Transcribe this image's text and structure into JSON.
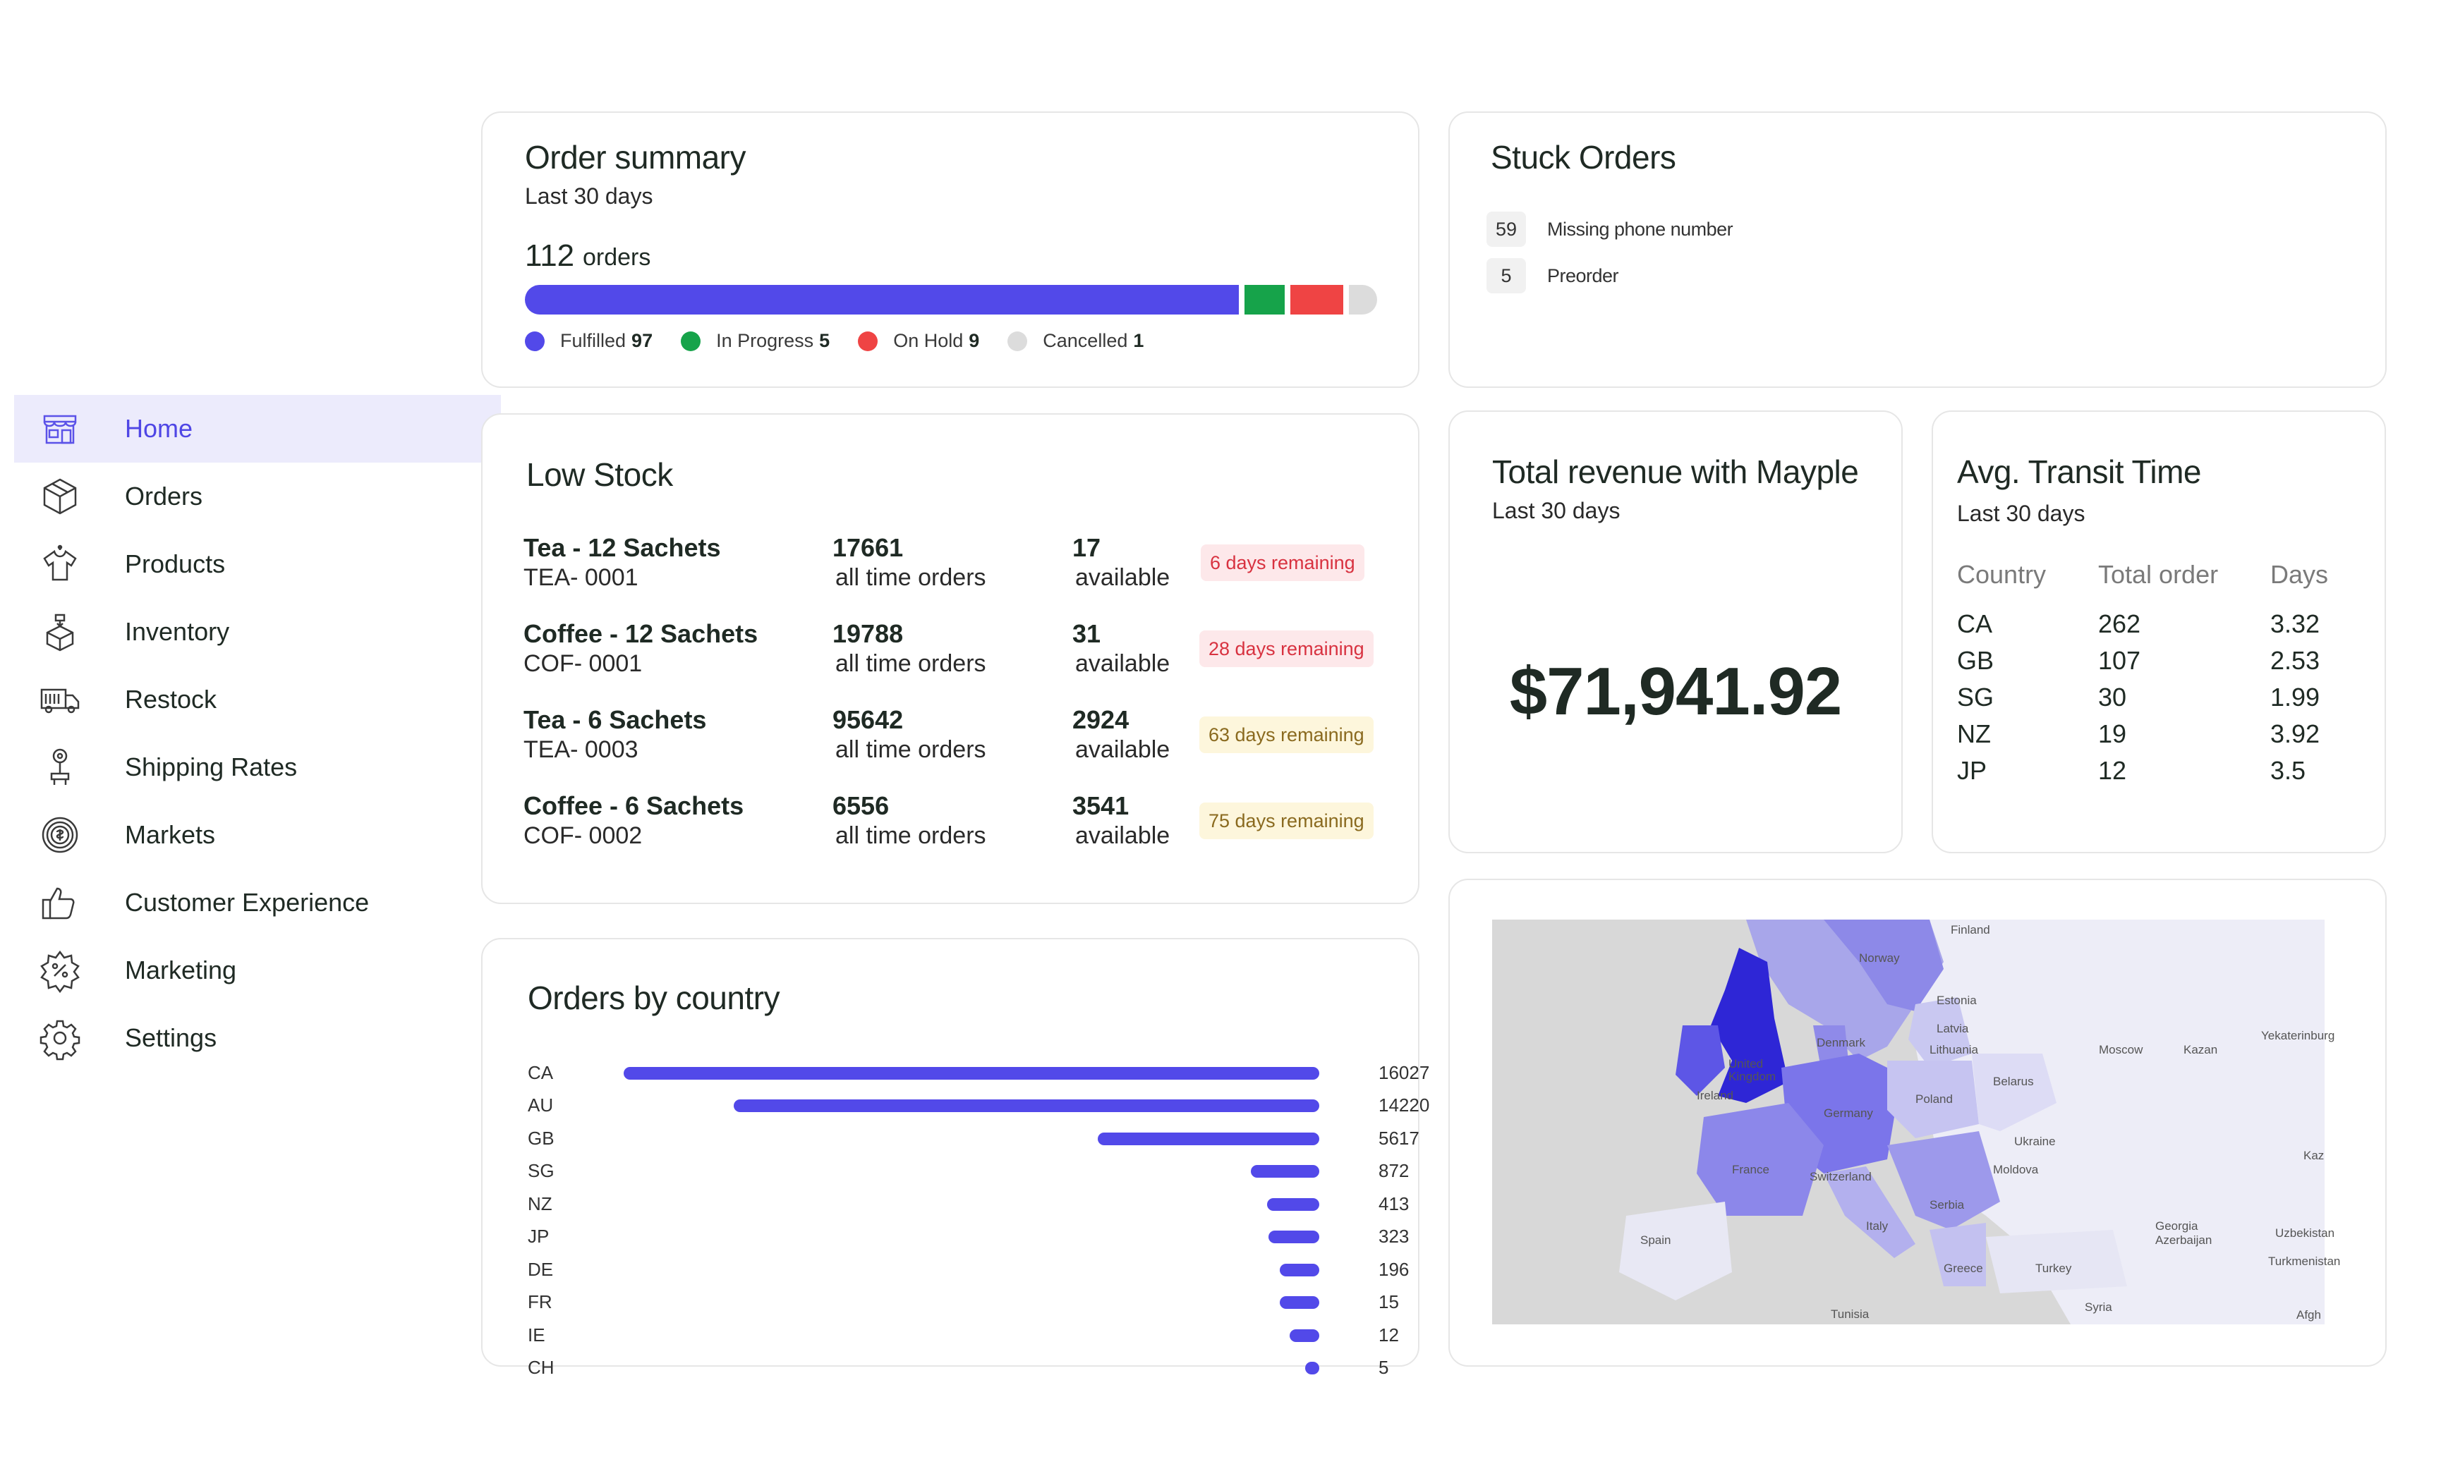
{
  "sidebar": {
    "items": [
      {
        "label": "Home",
        "icon": "store-icon"
      },
      {
        "label": "Orders",
        "icon": "box-icon"
      },
      {
        "label": "Products",
        "icon": "shirt-icon"
      },
      {
        "label": "Inventory",
        "icon": "boxes-icon"
      },
      {
        "label": "Restock",
        "icon": "truck-icon"
      },
      {
        "label": "Shipping Rates",
        "icon": "location-pin-icon"
      },
      {
        "label": "Markets",
        "icon": "target-icon"
      },
      {
        "label": "Customer Experience",
        "icon": "thumbs-up-icon"
      },
      {
        "label": "Marketing",
        "icon": "discount-badge-icon"
      },
      {
        "label": "Settings",
        "icon": "gear-icon"
      }
    ],
    "active": "Home",
    "accent": "#4f46e5",
    "active_bg": "#ecebfc"
  },
  "order_summary": {
    "title": "Order summary",
    "subtitle": "Last 30 days",
    "total": "112",
    "total_unit": "orders",
    "segments": [
      {
        "label": "Fulfilled",
        "value": "97",
        "color": "#5249e9"
      },
      {
        "label": "In Progress",
        "value": "5",
        "color": "#16a34a"
      },
      {
        "label": "On Hold",
        "value": "9",
        "color": "#ef4444"
      },
      {
        "label": "Cancelled",
        "value": "1",
        "color": "#dcdcdc"
      }
    ]
  },
  "stuck_orders": {
    "title": "Stuck Orders",
    "items": [
      {
        "count": "59",
        "label": "Missing phone number"
      },
      {
        "count": "5",
        "label": "Preorder"
      }
    ]
  },
  "low_stock": {
    "title": "Low Stock",
    "rows": [
      {
        "name": "Tea - 12 Sachets",
        "sku": "TEA- 0001",
        "orders": "17661",
        "orders_label": "all time orders",
        "available": "17",
        "available_label": "available",
        "remaining": "6 days remaining",
        "status": "red"
      },
      {
        "name": "Coffee - 12 Sachets",
        "sku": "COF- 0001",
        "orders": "19788",
        "orders_label": "all time orders",
        "available": "31",
        "available_label": "available",
        "remaining": "28 days remaining",
        "status": "red"
      },
      {
        "name": "Tea - 6 Sachets",
        "sku": "TEA- 0003",
        "orders": "95642",
        "orders_label": "all time orders",
        "available": "2924",
        "available_label": "available",
        "remaining": "63 days remaining",
        "status": "yellow"
      },
      {
        "name": "Coffee - 6 Sachets",
        "sku": "COF- 0002",
        "orders": "6556",
        "orders_label": "all time orders",
        "available": "3541",
        "available_label": "available",
        "remaining": "75 days remaining",
        "status": "yellow"
      }
    ]
  },
  "orders_by_country": {
    "title": "Orders by country",
    "bar_color": "#5249e9",
    "rows": [
      {
        "country": "CA",
        "value": "16027"
      },
      {
        "country": "AU",
        "value": "14220"
      },
      {
        "country": "GB",
        "value": "5617"
      },
      {
        "country": "SG",
        "value": "872"
      },
      {
        "country": "NZ",
        "value": "413"
      },
      {
        "country": "JP",
        "value": "323"
      },
      {
        "country": "DE",
        "value": "196"
      },
      {
        "country": "FR",
        "value": "15"
      },
      {
        "country": "IE",
        "value": "12"
      },
      {
        "country": "CH",
        "value": "5"
      }
    ]
  },
  "total_revenue": {
    "title": "Total revenue with Mayple",
    "subtitle": "Last 30 days",
    "value": "$71,941.92"
  },
  "transit_time": {
    "title": "Avg. Transit Time",
    "subtitle": "Last 30 days",
    "headers": [
      "Country",
      "Total order",
      "Days"
    ],
    "rows": [
      [
        "CA",
        "262",
        "3.32"
      ],
      [
        "GB",
        "107",
        "2.53"
      ],
      [
        "SG",
        "30",
        "1.99"
      ],
      [
        "NZ",
        "19",
        "3.92"
      ],
      [
        "JP",
        "12",
        "3.5"
      ]
    ]
  },
  "map": {
    "labels": [
      "Finland",
      "Norway",
      "Estonia",
      "Latvia",
      "Lithuania",
      "Denmark",
      "United Kingdom",
      "Ireland",
      "Germany",
      "Poland",
      "Belarus",
      "Moscow",
      "Kazan",
      "Yekaterinburg",
      "Ukraine",
      "Moldova",
      "France",
      "Switzerland",
      "Italy",
      "Serbia",
      "Spain",
      "Greece",
      "Turkey",
      "Georgia",
      "Azerbaijan",
      "Uzbekistan",
      "Turkmenistan",
      "Syria",
      "Tunisia",
      "Kaz",
      "Afgh"
    ]
  }
}
